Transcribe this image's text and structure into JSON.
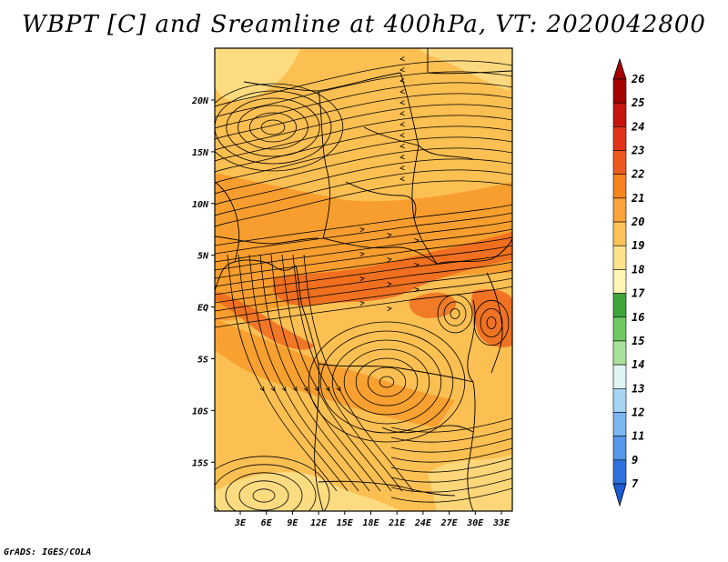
{
  "title": "WBPT [C] and Sreamline at 400hPa, VT: 2020042800",
  "footer": "GrADS: IGES/COLA",
  "map": {
    "lat_labels": [
      "20N",
      "15N",
      "10N",
      "5N",
      "EQ",
      "5S",
      "10S",
      "15S"
    ],
    "lon_labels": [
      "3E",
      "6E",
      "9E",
      "12E",
      "15E",
      "18E",
      "21E",
      "24E",
      "27E",
      "30E",
      "33E"
    ],
    "base_color": "#fbbf52",
    "warm_color": "#f79a2a",
    "hot_color": "#ee6a1e",
    "cool_color": "#fde08a"
  },
  "colorbar": {
    "labels": [
      "26",
      "25",
      "24",
      "23",
      "22",
      "21",
      "20",
      "19",
      "18",
      "17",
      "16",
      "15",
      "14",
      "13",
      "12",
      "11",
      "9",
      "7"
    ],
    "colors": [
      "#a50000",
      "#c8140e",
      "#e2341a",
      "#ee5a1e",
      "#f5831f",
      "#f9a33a",
      "#fbc35a",
      "#fde38a",
      "#fff6b3",
      "#3ea63a",
      "#70c864",
      "#a8e09c",
      "#dff4f4",
      "#a8d4f4",
      "#7ab6f0",
      "#5597e8",
      "#2e72dd"
    ],
    "top_color": "#a50000",
    "bottom_color": "#1a5ad6"
  }
}
